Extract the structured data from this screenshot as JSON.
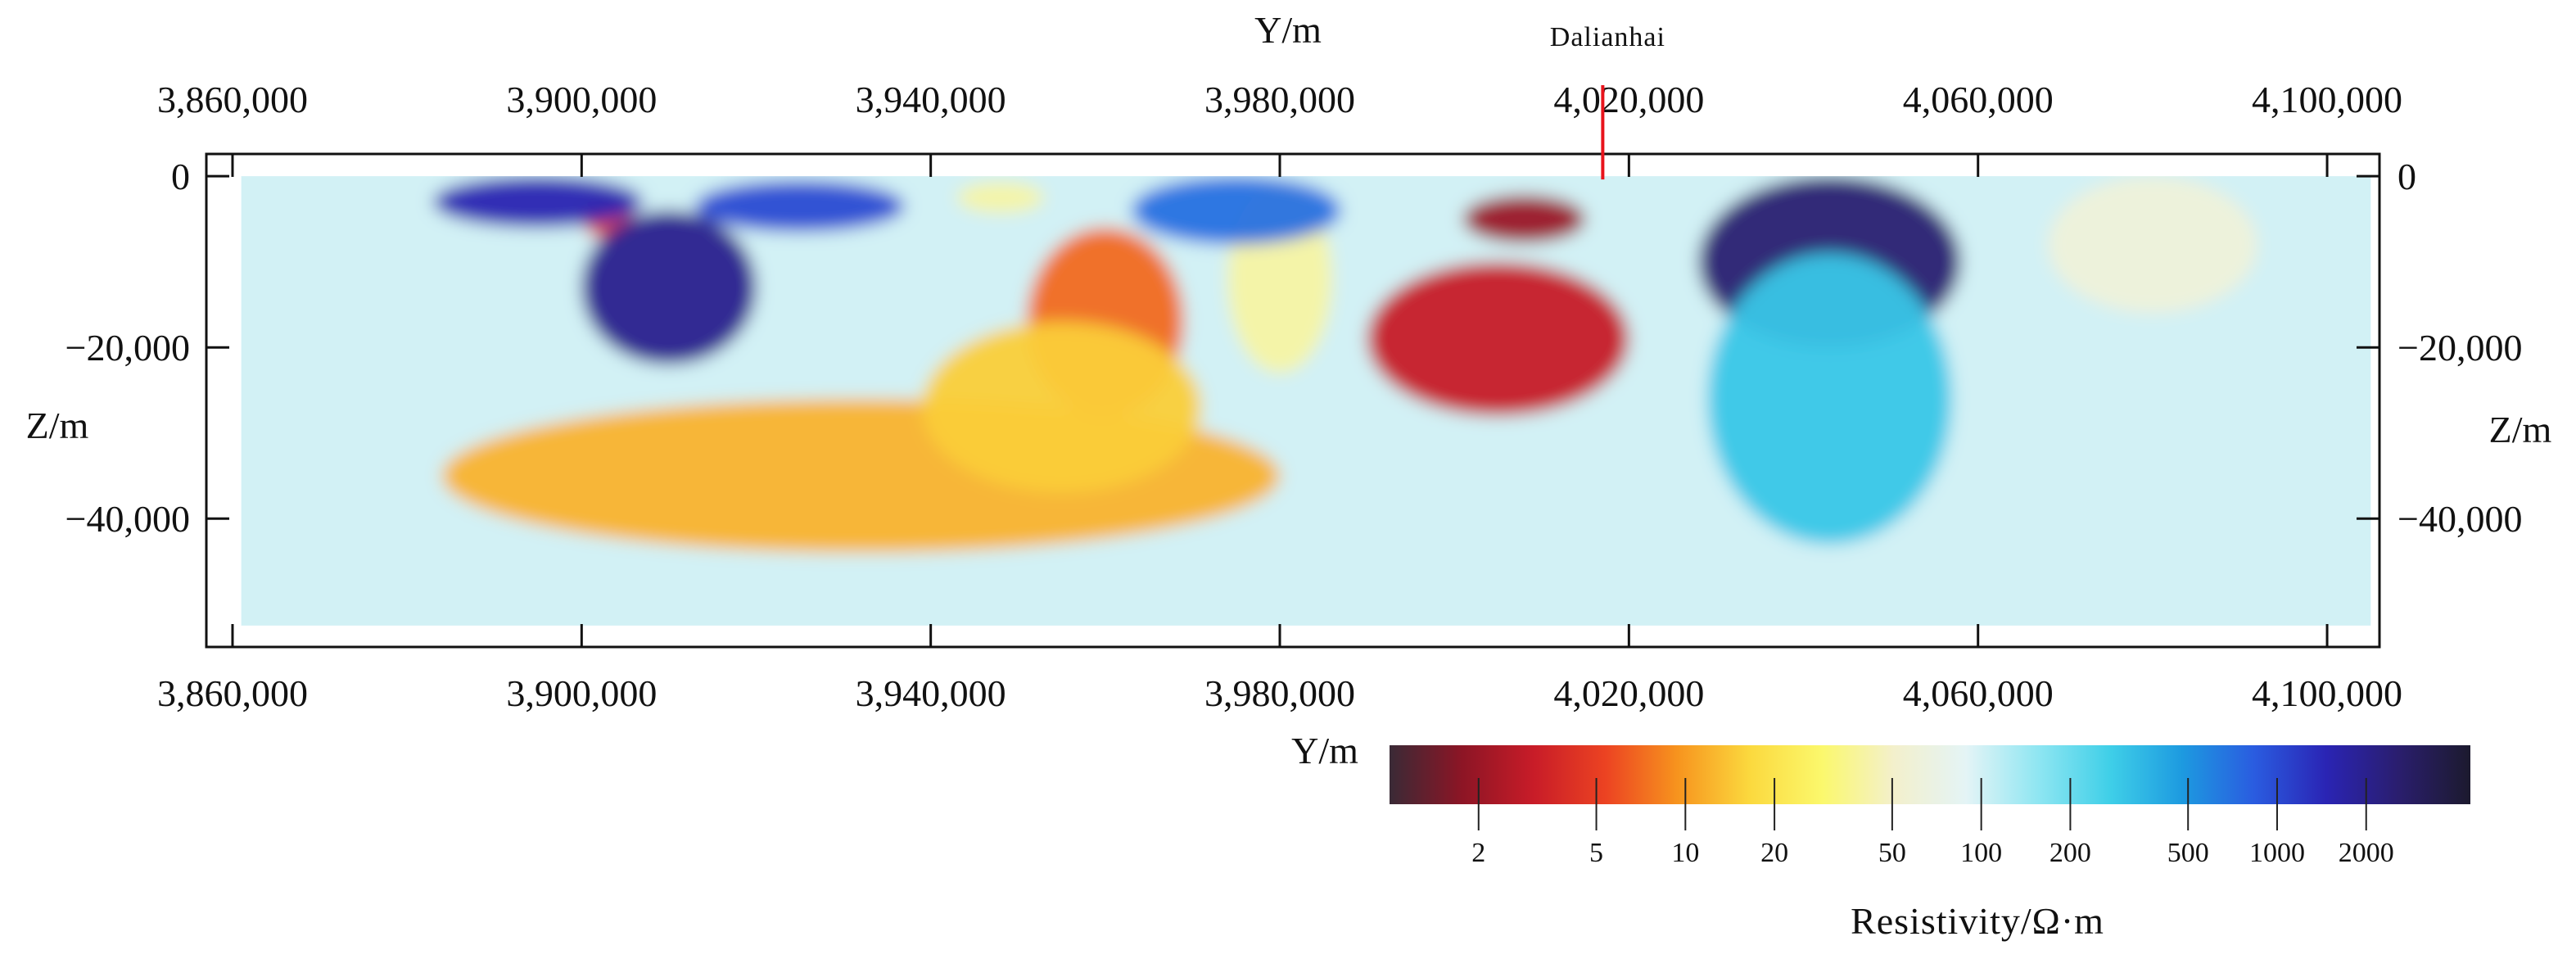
{
  "chart_data": {
    "type": "heatmap",
    "top_x_axis": {
      "title": "Y/m",
      "ticks": [
        3860000,
        3900000,
        3940000,
        3980000,
        4020000,
        4060000,
        4100000
      ],
      "tick_labels": [
        "3,860,000",
        "3,900,000",
        "3,940,000",
        "3,980,000",
        "4,020,000",
        "4,060,000",
        "4,100,000"
      ]
    },
    "bottom_x_axis": {
      "title": "Y/m",
      "ticks": [
        3860000,
        3900000,
        3940000,
        3980000,
        4020000,
        4060000,
        4100000
      ],
      "tick_labels": [
        "3,860,000",
        "3,900,000",
        "3,940,000",
        "3,980,000",
        "4,020,000",
        "4,060,000",
        "4,100,000"
      ]
    },
    "left_y_axis": {
      "title": "Z/m",
      "ticks": [
        0,
        -20000,
        -40000
      ],
      "tick_labels": [
        "0",
        "−20,000",
        "−40,000"
      ]
    },
    "right_y_axis": {
      "title": "Z/m",
      "ticks": [
        0,
        -20000,
        -40000
      ],
      "tick_labels": [
        "0",
        "−20,000",
        "−40,000"
      ]
    },
    "xlim": [
      3857000,
      4106000
    ],
    "ylim": [
      -55000,
      2600
    ],
    "model_extent": {
      "x": [
        3861000,
        4105000
      ],
      "z": [
        -52500,
        0
      ]
    },
    "station": {
      "name": "Dalianhai",
      "x": 4017000
    },
    "colorbar": {
      "title": "Resistivity/Ω·m",
      "scale": "log",
      "range": [
        1,
        4500
      ],
      "ticks": [
        2,
        5,
        10,
        20,
        50,
        100,
        200,
        500,
        1000,
        2000
      ],
      "tick_labels": [
        "2",
        "5",
        "10",
        "20",
        "50",
        "100",
        "200",
        "500",
        "1000",
        "2000"
      ],
      "colors": [
        "#3a2a36",
        "#8c1525",
        "#c81c28",
        "#ec4322",
        "#f7941e",
        "#fbd93e",
        "#fbf86c",
        "#f3f0cc",
        "#e4f4f6",
        "#8fe6f2",
        "#3fcfe8",
        "#1d9ae0",
        "#2a5ce0",
        "#2a24b4",
        "#2a1e6e",
        "#1c1a2e"
      ]
    },
    "background_resistivity": 100,
    "anomalies": [
      {
        "x": 3932000,
        "z": -35000,
        "rx": 48000,
        "rz": 9000,
        "rho": 12
      },
      {
        "x": 3960000,
        "z": -17000,
        "rx": 9000,
        "rz": 11000,
        "rho": 7
      },
      {
        "x": 3955000,
        "z": -27000,
        "rx": 16000,
        "rz": 10000,
        "rho": 15
      },
      {
        "x": 3980000,
        "z": -12000,
        "rx": 6000,
        "rz": 11000,
        "rho": 40
      },
      {
        "x": 4005000,
        "z": -19000,
        "rx": 15000,
        "rz": 9000,
        "rho": 3
      },
      {
        "x": 4008000,
        "z": -5000,
        "rx": 7000,
        "rz": 2800,
        "rho": 2
      },
      {
        "x": 3903000,
        "z": -5000,
        "rx": 3000,
        "rz": 2200,
        "rho": 5
      },
      {
        "x": 3910000,
        "z": -13000,
        "rx": 10000,
        "rz": 9000,
        "rho": 2000
      },
      {
        "x": 3895000,
        "z": -3000,
        "rx": 12000,
        "rz": 3000,
        "rho": 1500
      },
      {
        "x": 3925000,
        "z": -3500,
        "rx": 12000,
        "rz": 3000,
        "rho": 1000
      },
      {
        "x": 3975000,
        "z": -4000,
        "rx": 12000,
        "rz": 4000,
        "rho": 700
      },
      {
        "x": 3948000,
        "z": -2500,
        "rx": 5000,
        "rz": 1800,
        "rho": 40
      },
      {
        "x": 4043000,
        "z": -10000,
        "rx": 15000,
        "rz": 10000,
        "rho": 2500
      },
      {
        "x": 4043000,
        "z": -26000,
        "rx": 14000,
        "rz": 17000,
        "rho": 300
      },
      {
        "x": 4080000,
        "z": -8000,
        "rx": 12000,
        "rz": 8000,
        "rho": 60
      }
    ]
  }
}
